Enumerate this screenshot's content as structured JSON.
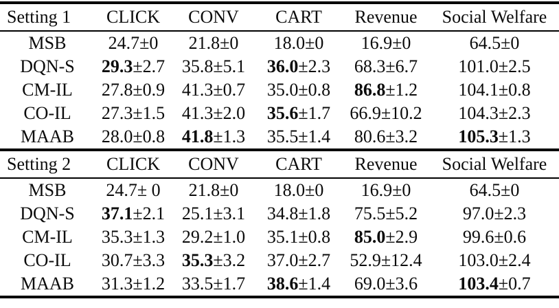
{
  "page": {
    "background_color": "#ffffff",
    "text_color": "#0b0b0b",
    "rule_color": "#000000"
  },
  "tables": [
    {
      "setting_label": "Setting 1",
      "columns": [
        "CLICK",
        "CONV",
        "CART",
        "Revenue",
        "Social Welfare"
      ],
      "rows": [
        {
          "method": "MSB",
          "cells": [
            {
              "mean": "24.7",
              "pm": "±0",
              "bold": false
            },
            {
              "mean": "21.8",
              "pm": "±0",
              "bold": false
            },
            {
              "mean": "18.0",
              "pm": "±0",
              "bold": false
            },
            {
              "mean": "16.9",
              "pm": "±0",
              "bold": false
            },
            {
              "mean": "64.5",
              "pm": "±0",
              "bold": false
            }
          ]
        },
        {
          "method": "DQN-S",
          "cells": [
            {
              "mean": "29.3",
              "pm": "±2.7",
              "bold": true
            },
            {
              "mean": "35.8",
              "pm": "±5.1",
              "bold": false
            },
            {
              "mean": "36.0",
              "pm": "±2.3",
              "bold": true
            },
            {
              "mean": "68.3",
              "pm": "±6.7",
              "bold": false
            },
            {
              "mean": "101.0",
              "pm": "±2.5",
              "bold": false
            }
          ]
        },
        {
          "method": "CM-IL",
          "cells": [
            {
              "mean": "27.8",
              "pm": "±0.9",
              "bold": false
            },
            {
              "mean": "41.3",
              "pm": "±0.7",
              "bold": false
            },
            {
              "mean": "35.0",
              "pm": "±0.8",
              "bold": false
            },
            {
              "mean": "86.8",
              "pm": "±1.2",
              "bold": true
            },
            {
              "mean": "104.1",
              "pm": "±0.8",
              "bold": false
            }
          ]
        },
        {
          "method": "CO-IL",
          "cells": [
            {
              "mean": "27.3",
              "pm": "±1.5",
              "bold": false
            },
            {
              "mean": "41.3",
              "pm": "±2.0",
              "bold": false
            },
            {
              "mean": "35.6",
              "pm": "±1.7",
              "bold": true
            },
            {
              "mean": "66.9",
              "pm": "±10.2",
              "bold": false
            },
            {
              "mean": "104.3",
              "pm": "±2.3",
              "bold": false
            }
          ]
        },
        {
          "method": "MAAB",
          "cells": [
            {
              "mean": "28.0",
              "pm": "±0.8",
              "bold": false
            },
            {
              "mean": "41.8",
              "pm": "±1.3",
              "bold": true
            },
            {
              "mean": "35.5",
              "pm": "±1.4",
              "bold": false
            },
            {
              "mean": "80.6",
              "pm": "±3.2",
              "bold": false
            },
            {
              "mean": "105.3",
              "pm": "±1.3",
              "bold": true
            }
          ]
        }
      ]
    },
    {
      "setting_label": "Setting 2",
      "columns": [
        "CLICK",
        "CONV",
        "CART",
        "Revenue",
        "Social Welfare"
      ],
      "rows": [
        {
          "method": "MSB",
          "cells": [
            {
              "mean": "24.7",
              "pm": "± 0",
              "bold": false
            },
            {
              "mean": "21.8",
              "pm": "±0",
              "bold": false
            },
            {
              "mean": "18.0",
              "pm": "±0",
              "bold": false
            },
            {
              "mean": "16.9",
              "pm": "±0",
              "bold": false
            },
            {
              "mean": "64.5",
              "pm": "±0",
              "bold": false
            }
          ]
        },
        {
          "method": "DQN-S",
          "cells": [
            {
              "mean": "37.1",
              "pm": "±2.1",
              "bold": true
            },
            {
              "mean": "25.1",
              "pm": "±3.1",
              "bold": false
            },
            {
              "mean": "34.8",
              "pm": "±1.8",
              "bold": false
            },
            {
              "mean": "75.5",
              "pm": "±5.2",
              "bold": false
            },
            {
              "mean": "97.0",
              "pm": "±2.3",
              "bold": false
            }
          ]
        },
        {
          "method": "CM-IL",
          "cells": [
            {
              "mean": "35.3",
              "pm": "±1.3",
              "bold": false
            },
            {
              "mean": "29.2",
              "pm": "±1.0",
              "bold": false
            },
            {
              "mean": "35.1",
              "pm": "±0.8",
              "bold": false
            },
            {
              "mean": "85.0",
              "pm": "±2.9",
              "bold": true
            },
            {
              "mean": "99.6",
              "pm": "±0.6",
              "bold": false
            }
          ]
        },
        {
          "method": "CO-IL",
          "cells": [
            {
              "mean": "30.7",
              "pm": "±3.3",
              "bold": false
            },
            {
              "mean": "35.3",
              "pm": "±3.2",
              "bold": true
            },
            {
              "mean": "37.0",
              "pm": "±2.7",
              "bold": false
            },
            {
              "mean": "52.9",
              "pm": "±12.4",
              "bold": false
            },
            {
              "mean": "103.0",
              "pm": "±2.4",
              "bold": false
            }
          ]
        },
        {
          "method": "MAAB",
          "cells": [
            {
              "mean": "31.3",
              "pm": "±1.2",
              "bold": false
            },
            {
              "mean": "33.5",
              "pm": "±1.7",
              "bold": false
            },
            {
              "mean": "38.6",
              "pm": "±1.4",
              "bold": true
            },
            {
              "mean": "69.0",
              "pm": "±3.6",
              "bold": false
            },
            {
              "mean": "103.4",
              "pm": "±0.7",
              "bold": true
            }
          ]
        }
      ]
    }
  ]
}
